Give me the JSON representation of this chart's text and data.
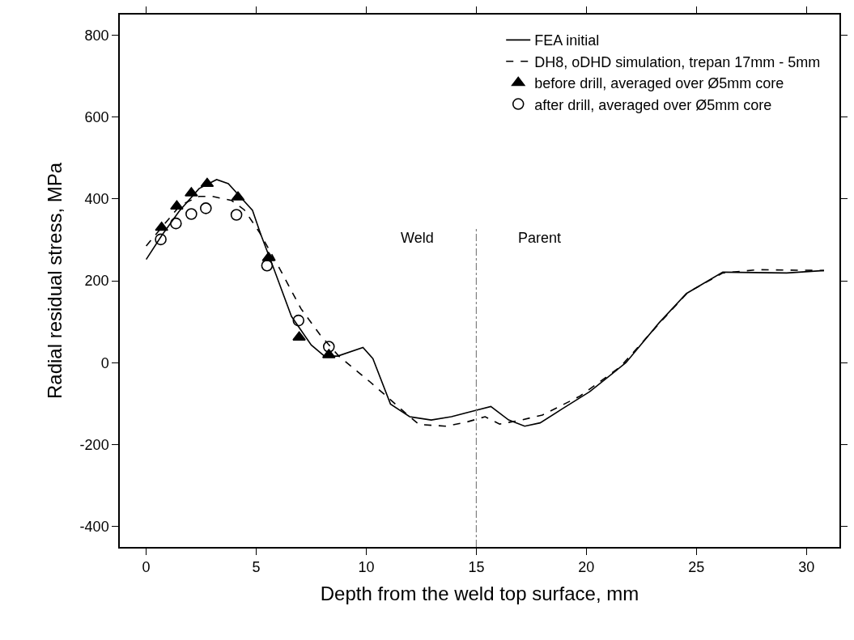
{
  "chart_data": {
    "type": "line",
    "xlabel": "Depth from the weld top surface, mm",
    "ylabel": "Radial residual stress, MPa",
    "xlim": [
      -1.2,
      31.5
    ],
    "ylim": [
      -450,
      850
    ],
    "xticks": [
      0,
      5,
      10,
      15,
      20,
      25,
      30
    ],
    "yticks": [
      -400,
      -200,
      0,
      200,
      400,
      600,
      800
    ],
    "legend": "top right",
    "series": [
      {
        "name": "FEA initial",
        "color": "#000000",
        "line_style": "solid",
        "marker": "none",
        "x": [
          0,
          0.7,
          1.5,
          2.4,
          3.2,
          3.73,
          4.83,
          5.2,
          5.8,
          6.6,
          7.5,
          8.1,
          8.7,
          9.85,
          10.3,
          11.1,
          11.97,
          12.95,
          13.87,
          14.86,
          15.66,
          16.47,
          17.2,
          17.9,
          18.9,
          20.15,
          21.8,
          23.3,
          24.55,
          26.2,
          29.1,
          30.8
        ],
        "values": [
          252,
          310,
          370,
          425,
          447,
          437,
          372,
          314,
          229,
          113,
          43,
          16,
          16,
          37,
          10,
          -101,
          -132,
          -140,
          -132,
          -118,
          -107,
          -140,
          -155,
          -147,
          -113,
          -71,
          0,
          97,
          169,
          221,
          219,
          225
        ]
      },
      {
        "name": "DH8, oDHD simulation, trepan 17mm - 5mm",
        "color": "#000000",
        "line_style": "dashed",
        "marker": "none",
        "x": [
          0,
          1.54,
          2.4,
          3.0,
          3.88,
          4.46,
          5.16,
          6.07,
          7.03,
          7.9,
          8.75,
          10.13,
          10.94,
          11.93,
          12.4,
          13.6,
          14.5,
          15.4,
          16.06,
          17.05,
          18.0,
          19.7,
          21.55,
          23.3,
          24.6,
          26.2,
          27.8,
          30.8
        ],
        "values": [
          285,
          384,
          406,
          406,
          396,
          373,
          317,
          229,
          132,
          68,
          16,
          -45,
          -83,
          -130,
          -151,
          -155,
          -146,
          -132,
          -150,
          -140,
          -128,
          -82,
          -10,
          95,
          171,
          219,
          227,
          225
        ]
      },
      {
        "name": "before drill, averaged over Ø5mm core",
        "type": "scatter",
        "color": "#000000",
        "marker": "triangle",
        "x": [
          0.7,
          1.39,
          2.05,
          2.77,
          4.17,
          5.56,
          6.95,
          8.3
        ],
        "values": [
          330,
          382,
          414,
          437,
          404,
          256,
          62,
          19
        ]
      },
      {
        "name": "after drill, averaged over Ø5mm core",
        "type": "scatter",
        "color": "#000000",
        "marker": "circle",
        "x": [
          0.66,
          1.35,
          2.05,
          2.71,
          4.1,
          5.49,
          6.92,
          8.3
        ],
        "values": [
          301,
          340,
          363,
          377,
          361,
          237,
          103,
          39
        ]
      }
    ],
    "ref_lines": [
      {
        "axis": "x",
        "value": 15,
        "color": "#808080",
        "line_style": "dashdot"
      }
    ],
    "annotations": [
      "Weld",
      "Parent"
    ]
  }
}
